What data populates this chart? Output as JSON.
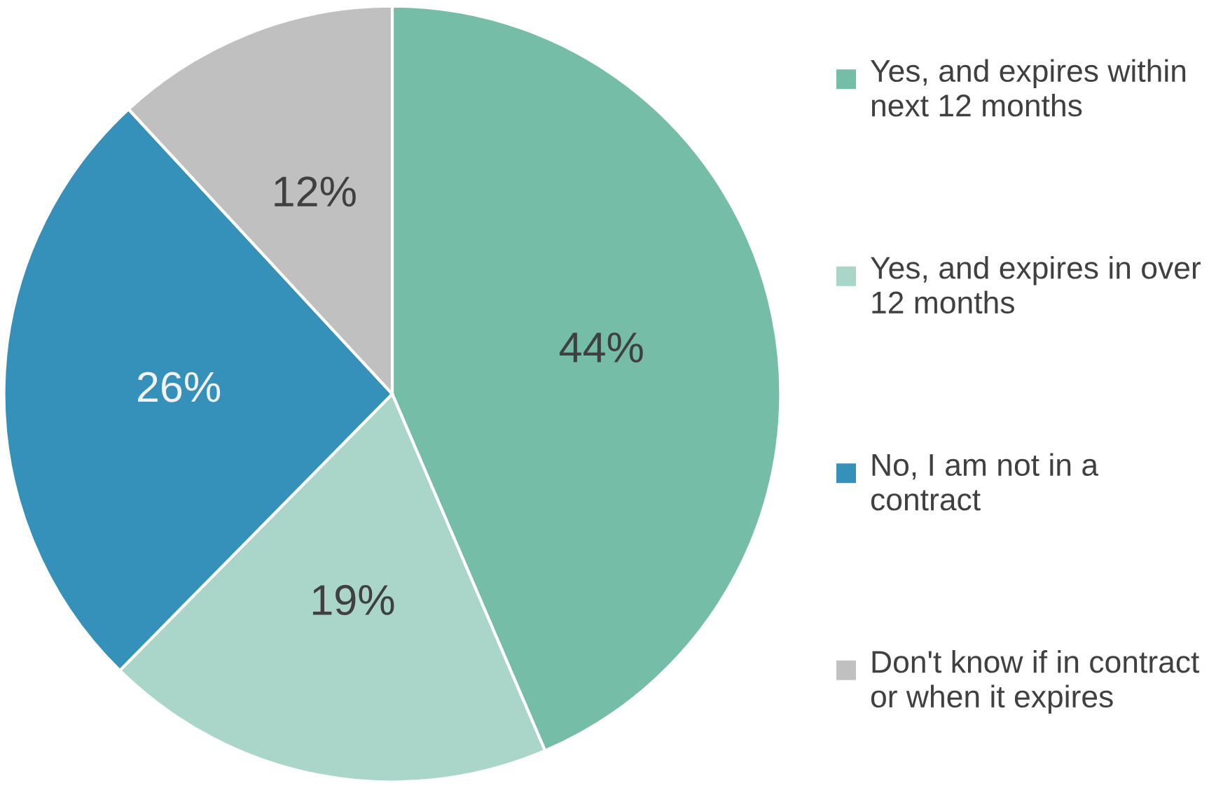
{
  "chart_data": {
    "type": "pie",
    "categories": [
      "Yes, and expires within next 12 months",
      "Yes, and expires in over 12 months",
      "No, I am not in a contract",
      "Don't know if in contract or when it expires"
    ],
    "values": [
      44,
      19,
      26,
      12
    ],
    "colors": [
      "#76bda7",
      "#aad5c9",
      "#3591b9",
      "#c0c0c0"
    ],
    "value_labels": [
      "44%",
      "19%",
      "26%",
      "12%"
    ],
    "legend": "right"
  }
}
